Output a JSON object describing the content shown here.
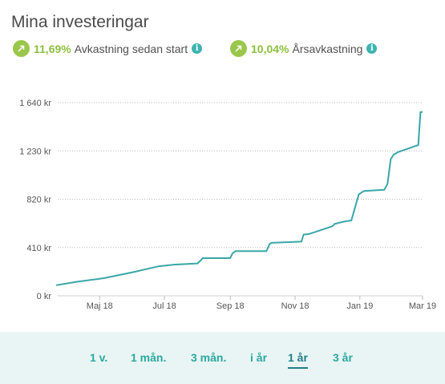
{
  "header": {
    "title": "Mina investeringar"
  },
  "stats": [
    {
      "value": "11,69%",
      "label": "Avkastning sedan start",
      "icon": "arrow-up-right-icon",
      "info_icon": "info-icon"
    },
    {
      "value": "10,04%",
      "label": "Årsavkastning",
      "icon": "arrow-up-right-icon",
      "info_icon": "info-icon"
    }
  ],
  "colors": {
    "accent": "#3aa6a8",
    "positive": "#8cbf3f",
    "footer_bg": "#e9f5f4"
  },
  "chart_data": {
    "type": "line",
    "title": "",
    "xlabel": "",
    "ylabel": "",
    "ylim": [
      0,
      1640
    ],
    "y_ticks": [
      {
        "value": 0,
        "label": "0 kr"
      },
      {
        "value": 410,
        "label": "410 kr"
      },
      {
        "value": 820,
        "label": "820 kr"
      },
      {
        "value": 1230,
        "label": "1 230 kr"
      },
      {
        "value": 1640,
        "label": "1 640 kr"
      }
    ],
    "x_ticks": [
      {
        "date": "2018-05-01",
        "label": "Maj 18"
      },
      {
        "date": "2018-07-01",
        "label": "Jul 18"
      },
      {
        "date": "2018-09-01",
        "label": "Sep 18"
      },
      {
        "date": "2018-11-01",
        "label": "Nov 18"
      },
      {
        "date": "2019-01-01",
        "label": "Jan 19"
      },
      {
        "date": "2019-03-01",
        "label": "Mar 19"
      }
    ],
    "grid": true,
    "series": [
      {
        "points": [
          [
            "2018-03-21",
            90
          ],
          [
            "2018-04-10",
            120
          ],
          [
            "2018-05-05",
            150
          ],
          [
            "2018-06-01",
            200
          ],
          [
            "2018-06-25",
            250
          ],
          [
            "2018-07-10",
            265
          ],
          [
            "2018-08-01",
            275
          ],
          [
            "2018-08-04",
            300
          ],
          [
            "2018-08-06",
            320
          ],
          [
            "2018-09-01",
            320
          ],
          [
            "2018-09-03",
            360
          ],
          [
            "2018-09-06",
            380
          ],
          [
            "2018-10-05",
            380
          ],
          [
            "2018-10-08",
            440
          ],
          [
            "2018-10-10",
            450
          ],
          [
            "2018-11-07",
            460
          ],
          [
            "2018-11-09",
            520
          ],
          [
            "2018-11-14",
            525
          ],
          [
            "2018-12-06",
            590
          ],
          [
            "2018-12-08",
            610
          ],
          [
            "2018-12-17",
            630
          ],
          [
            "2018-12-24",
            640
          ],
          [
            "2018-12-29",
            800
          ],
          [
            "2018-12-31",
            860
          ],
          [
            "2019-01-03",
            880
          ],
          [
            "2019-01-05",
            890
          ],
          [
            "2019-01-24",
            900
          ],
          [
            "2019-01-27",
            950
          ],
          [
            "2019-01-30",
            1160
          ],
          [
            "2019-02-02",
            1200
          ],
          [
            "2019-02-06",
            1220
          ],
          [
            "2019-02-25",
            1280
          ],
          [
            "2019-02-27",
            1560
          ],
          [
            "2019-03-01",
            1560
          ]
        ]
      }
    ]
  },
  "footer": {
    "ranges": [
      {
        "label": "1 v.",
        "active": false
      },
      {
        "label": "1 mån.",
        "active": false
      },
      {
        "label": "3 mån.",
        "active": false
      },
      {
        "label": "i år",
        "active": false
      },
      {
        "label": "1 år",
        "active": true
      },
      {
        "label": "3 år",
        "active": false
      }
    ]
  }
}
